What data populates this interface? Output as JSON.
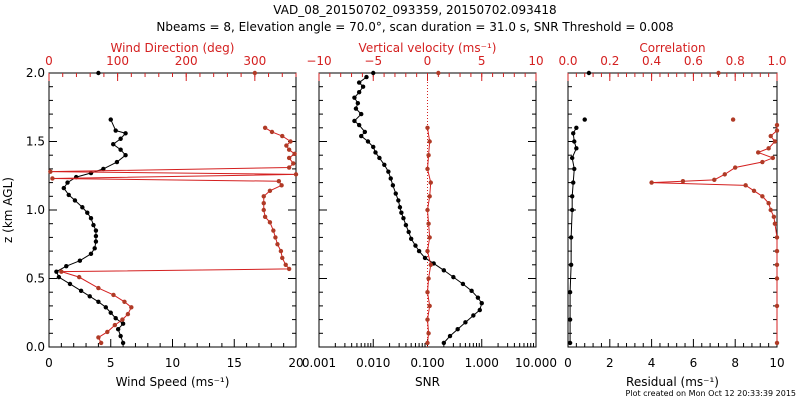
{
  "header": {
    "title": "VAD_08_20150702_093359, 20150702.093418",
    "subtitle": "Nbeams = 8, Elevation angle = 70.0°, scan duration = 31.0 s, SNR Threshold = 0.008"
  },
  "footer": {
    "created": "Plot created on Mon Oct 12 20:33:39 2015"
  },
  "colors": {
    "black_series": "#000000",
    "red_series": "#b03a26",
    "red_axis": "#d42020"
  },
  "chart_data": [
    {
      "id": "wind",
      "type": "line",
      "ylabel": "z (km AGL)",
      "ylim": [
        0,
        2
      ],
      "yticks": [
        "0.0",
        "0.5",
        "1.0",
        "1.5",
        "2.0"
      ],
      "xlabel_bottom": "Wind Speed (ms⁻¹)",
      "xlim_bottom": [
        0,
        20
      ],
      "xticks_bottom": [
        "0",
        "5",
        "10",
        "15",
        "20"
      ],
      "xlabel_top": "Wind Direction (deg)",
      "xlim_top": [
        0,
        360
      ],
      "xticks_top": [
        "0",
        "100",
        "200",
        "300"
      ],
      "series": [
        {
          "name": "Wind Speed",
          "axis": "bottom",
          "color": "black",
          "points": [
            [
              6,
              0.03
            ],
            [
              5.8,
              0.08
            ],
            [
              5.6,
              0.13
            ],
            [
              6.0,
              0.17
            ],
            [
              5.4,
              0.21
            ],
            [
              5.0,
              0.25
            ],
            [
              4.6,
              0.29
            ],
            [
              4.0,
              0.33
            ],
            [
              3.3,
              0.37
            ],
            [
              2.6,
              0.41
            ],
            [
              1.7,
              0.46
            ],
            [
              0.8,
              0.51
            ],
            [
              0.6,
              0.55
            ],
            [
              1.4,
              0.59
            ],
            [
              2.5,
              0.63
            ],
            [
              3.4,
              0.68
            ],
            [
              3.7,
              0.72
            ],
            [
              3.8,
              0.77
            ],
            [
              3.8,
              0.81
            ],
            [
              3.8,
              0.85
            ],
            [
              3.6,
              0.89
            ],
            [
              3.4,
              0.94
            ],
            [
              3.1,
              0.98
            ],
            [
              2.7,
              1.02
            ],
            [
              2.1,
              1.07
            ],
            [
              1.6,
              1.11
            ],
            [
              1.2,
              1.16
            ],
            [
              1.5,
              1.2
            ],
            [
              2.2,
              1.24
            ],
            [
              3.4,
              1.27
            ],
            [
              4.4,
              1.3
            ],
            [
              5.5,
              1.35
            ],
            [
              6.2,
              1.4
            ],
            [
              5.8,
              1.44
            ],
            [
              5.2,
              1.48
            ],
            [
              5.8,
              1.52
            ],
            [
              6.2,
              1.56
            ],
            [
              5.4,
              1.58
            ],
            [
              5.0,
              1.66
            ]
          ]
        },
        {
          "name": "Wind Direction",
          "axis": "top",
          "color": "red",
          "points": [
            [
              76,
              0.03
            ],
            [
              72,
              0.07
            ],
            [
              85,
              0.11
            ],
            [
              96,
              0.16
            ],
            [
              107,
              0.2
            ],
            [
              115,
              0.24
            ],
            [
              120,
              0.29
            ],
            [
              110,
              0.33
            ],
            [
              94,
              0.38
            ],
            [
              72,
              0.43
            ],
            [
              44,
              0.51
            ],
            [
              18,
              0.55
            ],
            [
              350,
              0.57
            ],
            [
              345,
              0.6
            ],
            [
              340,
              0.65
            ],
            [
              338,
              0.7
            ],
            [
              333,
              0.75
            ],
            [
              330,
              0.8
            ],
            [
              327,
              0.85
            ],
            [
              322,
              0.91
            ],
            [
              315,
              0.95
            ],
            [
              313,
              1.0
            ],
            [
              313,
              1.05
            ],
            [
              313,
              1.1
            ],
            [
              322,
              1.14
            ],
            [
              339,
              1.18
            ],
            [
              335,
              1.21
            ],
            [
              5,
              1.23
            ],
            [
              360,
              1.26
            ],
            [
              2,
              1.28
            ],
            [
              350,
              1.31
            ],
            [
              356,
              1.34
            ],
            [
              350,
              1.38
            ],
            [
              358,
              1.41
            ],
            [
              350,
              1.44
            ],
            [
              346,
              1.47
            ],
            [
              352,
              1.5
            ],
            [
              340,
              1.54
            ],
            [
              325,
              1.57
            ],
            [
              315,
              1.6
            ]
          ]
        }
      ],
      "extra_points": [
        {
          "series": "Wind Speed",
          "x": 4.0,
          "y": 2.0,
          "axis": "bottom"
        },
        {
          "series": "Wind Direction",
          "x": 300,
          "y": 2.0,
          "axis": "top"
        }
      ]
    },
    {
      "id": "snr",
      "type": "line",
      "ylim": [
        0,
        2
      ],
      "xlabel_bottom": "SNR",
      "xscale_bottom": "log",
      "xlim_bottom": [
        0.001,
        10
      ],
      "xticks_bottom": [
        "0.001",
        "0.010",
        "0.100",
        "1.000",
        "10.000"
      ],
      "xlabel_top": "Vertical velocity (ms⁻¹)",
      "xlim_top": [
        -10,
        10
      ],
      "xticks_top": [
        "−10",
        "−5",
        "0",
        "5",
        "10"
      ],
      "series": [
        {
          "name": "SNR",
          "axis": "bottom",
          "color": "black",
          "points": [
            [
              0.2,
              0.03
            ],
            [
              0.26,
              0.08
            ],
            [
              0.36,
              0.13
            ],
            [
              0.5,
              0.18
            ],
            [
              0.7,
              0.23
            ],
            [
              0.92,
              0.27
            ],
            [
              1.0,
              0.32
            ],
            [
              0.85,
              0.36
            ],
            [
              0.65,
              0.41
            ],
            [
              0.45,
              0.46
            ],
            [
              0.3,
              0.51
            ],
            [
              0.2,
              0.56
            ],
            [
              0.13,
              0.61
            ],
            [
              0.09,
              0.65
            ],
            [
              0.07,
              0.7
            ],
            [
              0.06,
              0.74
            ],
            [
              0.05,
              0.79
            ],
            [
              0.045,
              0.84
            ],
            [
              0.04,
              0.89
            ],
            [
              0.036,
              0.94
            ],
            [
              0.033,
              0.98
            ],
            [
              0.031,
              1.02
            ],
            [
              0.029,
              1.07
            ],
            [
              0.026,
              1.12
            ],
            [
              0.023,
              1.18
            ],
            [
              0.021,
              1.23
            ],
            [
              0.019,
              1.28
            ],
            [
              0.016,
              1.33
            ],
            [
              0.013,
              1.38
            ],
            [
              0.011,
              1.42
            ],
            [
              0.01,
              1.46
            ],
            [
              0.008,
              1.5
            ],
            [
              0.006,
              1.54
            ],
            [
              0.007,
              1.57
            ],
            [
              0.0055,
              1.62
            ],
            [
              0.0045,
              1.65
            ],
            [
              0.006,
              1.7
            ],
            [
              0.0048,
              1.74
            ],
            [
              0.0052,
              1.78
            ],
            [
              0.0045,
              1.82
            ],
            [
              0.0055,
              1.86
            ],
            [
              0.0065,
              1.9
            ],
            [
              0.0055,
              1.93
            ],
            [
              0.0075,
              1.97
            ]
          ]
        },
        {
          "name": "Vertical velocity",
          "axis": "top",
          "color": "red",
          "points": [
            [
              0,
              0.03
            ],
            [
              0.1,
              0.1
            ],
            [
              0,
              0.2
            ],
            [
              0.2,
              0.3
            ],
            [
              0,
              0.4
            ],
            [
              0.1,
              0.5
            ],
            [
              0.3,
              0.6
            ],
            [
              0,
              0.7
            ],
            [
              0.2,
              0.8
            ],
            [
              0.1,
              0.9
            ],
            [
              0,
              1.0
            ],
            [
              0.2,
              1.1
            ],
            [
              0.3,
              1.2
            ],
            [
              0,
              1.3
            ],
            [
              0.1,
              1.4
            ],
            [
              0.2,
              1.5
            ],
            [
              0,
              1.6
            ]
          ]
        }
      ],
      "extra_points": [
        {
          "series": "Vertical velocity",
          "x": 1.0,
          "y": 2.0,
          "axis": "top"
        },
        {
          "series": "SNR",
          "x": 0.01,
          "y": 2.0,
          "axis": "bottom"
        }
      ],
      "reference_line": {
        "axis": "top",
        "x": 0,
        "style": "dotted"
      }
    },
    {
      "id": "corr",
      "type": "line",
      "ylim": [
        0,
        2
      ],
      "xlabel_bottom": "Residual (ms⁻¹)",
      "xlim_bottom": [
        0,
        10
      ],
      "xticks_bottom": [
        "0",
        "2",
        "4",
        "6",
        "8",
        "10"
      ],
      "xlabel_top": "Correlation",
      "xlim_top": [
        0,
        1
      ],
      "xticks_top": [
        "0.0",
        "0.2",
        "0.4",
        "0.6",
        "0.8",
        "1.0"
      ],
      "series": [
        {
          "name": "Residual",
          "axis": "bottom",
          "color": "black",
          "points": [
            [
              0.1,
              0.03
            ],
            [
              0.1,
              0.2
            ],
            [
              0.1,
              0.4
            ],
            [
              0.15,
              0.6
            ],
            [
              0.15,
              0.8
            ],
            [
              0.2,
              1.0
            ],
            [
              0.2,
              1.1
            ],
            [
              0.25,
              1.2
            ],
            [
              0.3,
              1.3
            ],
            [
              0.2,
              1.38
            ],
            [
              0.4,
              1.45
            ],
            [
              0.3,
              1.5
            ],
            [
              0.25,
              1.56
            ],
            [
              0.4,
              1.6
            ]
          ]
        },
        {
          "name": "Correlation",
          "axis": "top",
          "color": "red",
          "points": [
            [
              1.0,
              0.03
            ],
            [
              1.0,
              0.3
            ],
            [
              1.0,
              0.5
            ],
            [
              1.0,
              0.6
            ],
            [
              1.0,
              0.7
            ],
            [
              1.0,
              0.8
            ],
            [
              0.99,
              0.9
            ],
            [
              0.985,
              0.95
            ],
            [
              0.97,
              1.0
            ],
            [
              0.96,
              1.05
            ],
            [
              0.93,
              1.1
            ],
            [
              0.89,
              1.14
            ],
            [
              0.85,
              1.18
            ],
            [
              0.4,
              1.2
            ],
            [
              0.55,
              1.21
            ],
            [
              0.7,
              1.22
            ],
            [
              0.75,
              1.26
            ],
            [
              0.8,
              1.31
            ],
            [
              0.93,
              1.35
            ],
            [
              0.98,
              1.38
            ],
            [
              0.91,
              1.42
            ],
            [
              0.96,
              1.45
            ],
            [
              0.99,
              1.5
            ],
            [
              0.97,
              1.54
            ],
            [
              1.0,
              1.58
            ],
            [
              1.0,
              1.62
            ]
          ]
        }
      ],
      "extra_points": [
        {
          "series": "Residual",
          "x": 1.0,
          "y": 2.0,
          "axis": "bottom"
        },
        {
          "series": "Correlation",
          "x": 0.72,
          "y": 2.0,
          "axis": "top"
        },
        {
          "series": "Residual",
          "x": 0.8,
          "y": 1.66,
          "axis": "bottom"
        },
        {
          "series": "Correlation",
          "x": 0.79,
          "y": 1.66,
          "axis": "top"
        }
      ]
    }
  ]
}
